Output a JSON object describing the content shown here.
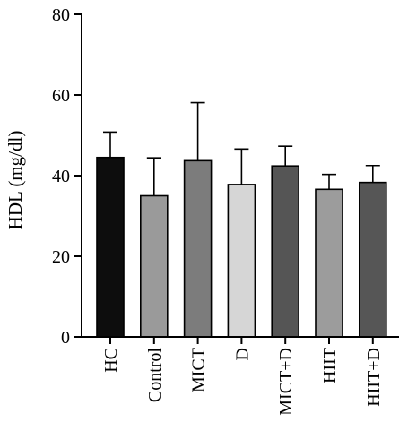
{
  "chart_data": {
    "type": "bar",
    "title": "",
    "xlabel": "",
    "ylabel": "HDL (mg/dl)",
    "ylim": [
      0,
      80
    ],
    "yticks": [
      0,
      20,
      40,
      60,
      80
    ],
    "grid": false,
    "legend": "none",
    "categories": [
      "HC",
      "Control",
      "MICT",
      "D",
      "MICT+D",
      "HIIT",
      "HIIT+D"
    ],
    "values": [
      44.5,
      35.0,
      43.7,
      37.8,
      42.4,
      36.6,
      38.3
    ],
    "error_upper": [
      50.8,
      44.4,
      58.1,
      46.6,
      47.3,
      40.3,
      42.5
    ],
    "colors": [
      "#0d0d0d",
      "#9a9a9a",
      "#7c7c7c",
      "#d6d6d6",
      "#555555",
      "#9c9c9c",
      "#565656"
    ]
  }
}
